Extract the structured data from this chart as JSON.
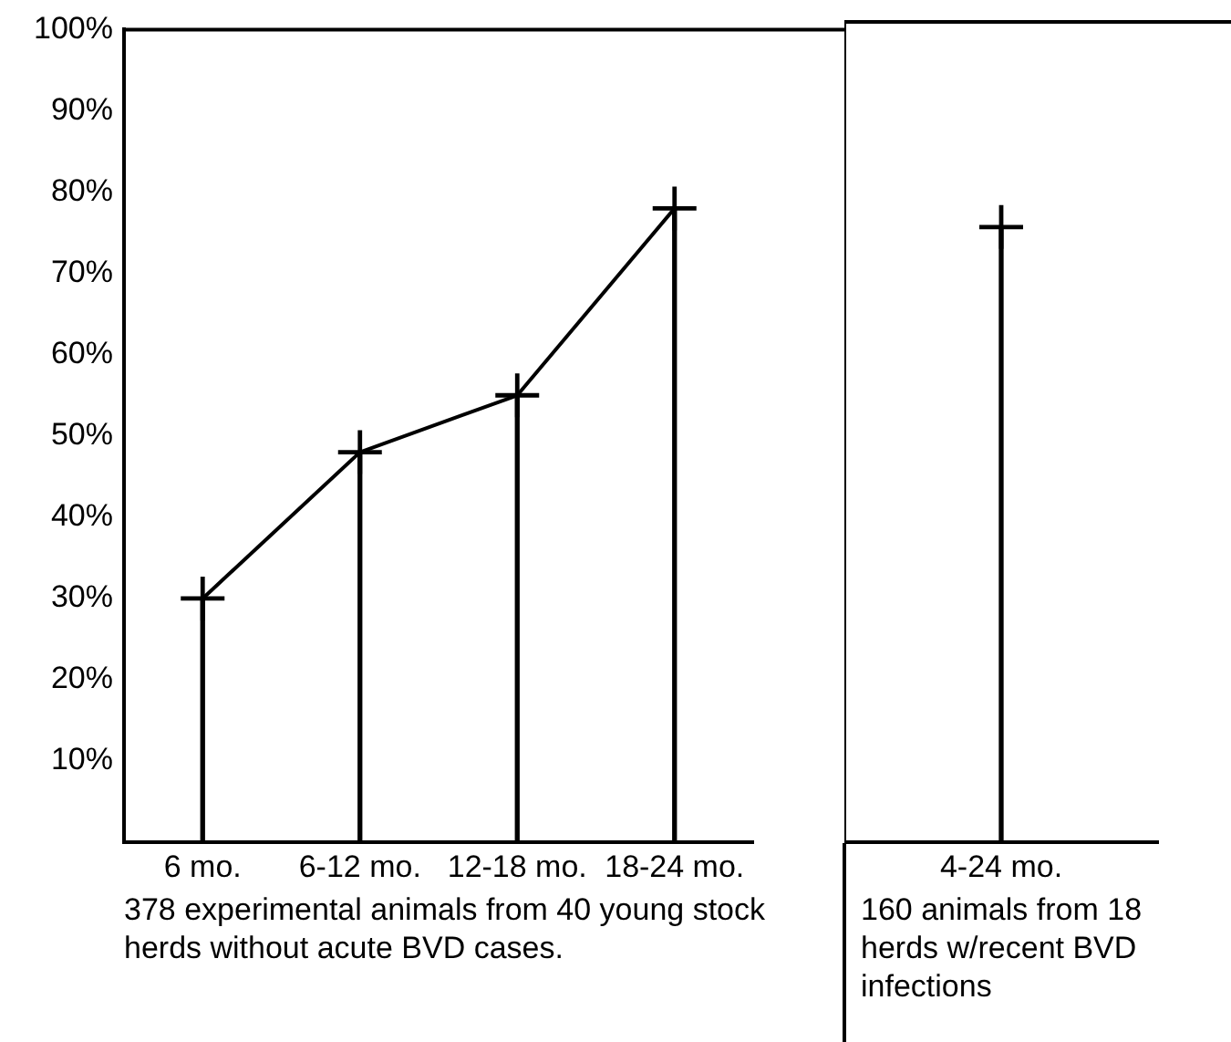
{
  "chart_data": [
    {
      "type": "line",
      "categories": [
        "6 mo.",
        "6-12 mo.",
        "12-18 mo.",
        "18-24 mo."
      ],
      "xlabel": "378 experimental animals from 40 young stock herds without acute BVD cases.",
      "series": [
        {
          "type": "bar",
          "color": "#000000",
          "values": [
            30,
            48,
            55,
            78
          ]
        },
        {
          "color": "#000000",
          "values": [
            30,
            48,
            55,
            78
          ]
        }
      ],
      "ylim": [
        0,
        100
      ],
      "yticks": [
        {
          "value": 10,
          "label": "10%"
        },
        {
          "value": 20,
          "label": "20%"
        },
        {
          "value": 30,
          "label": "30%"
        },
        {
          "value": 40,
          "label": "40%"
        },
        {
          "value": 50,
          "label": "50%"
        },
        {
          "value": 60,
          "label": "60%"
        },
        {
          "value": 70,
          "label": "70%"
        },
        {
          "value": 80,
          "label": "80%"
        },
        {
          "value": 90,
          "label": "90%"
        },
        {
          "value": 100,
          "label": "100%"
        }
      ],
      "marker": "cross",
      "grid": false,
      "legend": false
    },
    {
      "type": "bar",
      "categories": [
        "4-24 mo."
      ],
      "xlabel": "160 animals from 18 herds w/recent BVD infections",
      "series": [
        {
          "color": "#000000",
          "values": [
            75
          ]
        },
        {
          "type": "scatter",
          "color": "#000000",
          "values": [
            75
          ]
        }
      ],
      "ylim": [
        0,
        100
      ],
      "tick_labels": "x",
      "marker": "cross",
      "grid": false,
      "legend": false
    }
  ]
}
